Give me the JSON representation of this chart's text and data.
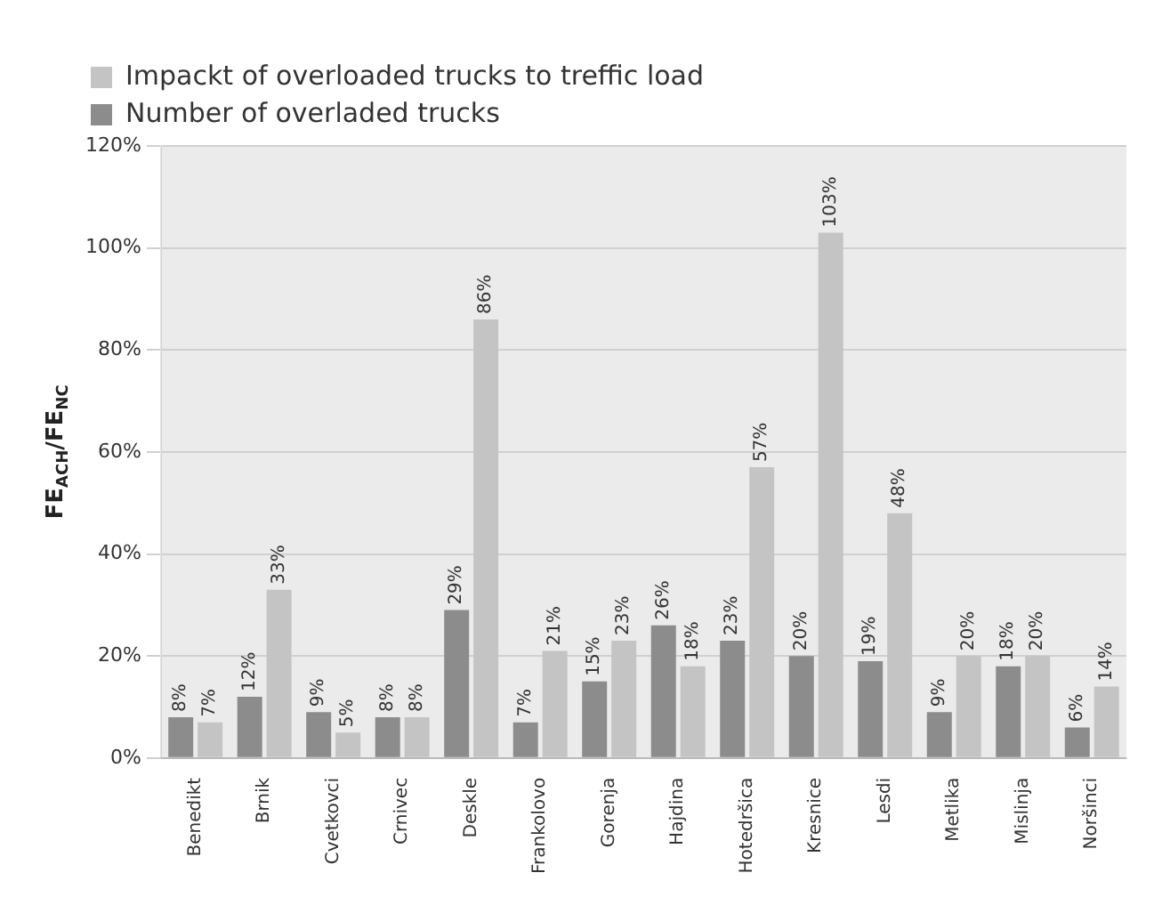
{
  "chart_data": {
    "type": "bar",
    "ylabel": "FE$_{ACH}$/FE$_{NC}$",
    "categories": [
      "Benedikt",
      "Brnik",
      "Cvetkovci",
      "Crnivec",
      "Deskle",
      "Frankolovo",
      "Gorenja",
      "Hajdina",
      "Hotedršica",
      "Kresnice",
      "Lesdi",
      "Metlika",
      "Mislinja",
      "Noršinci"
    ],
    "series": [
      {
        "name": "Number of overladed trucks",
        "color": "#8c8c8c",
        "values": [
          8,
          12,
          9,
          8,
          29,
          7,
          15,
          26,
          23,
          20,
          19,
          9,
          18,
          6
        ],
        "value_labels": [
          "8%",
          "12%",
          "9%",
          "8%",
          "29%",
          "7%",
          "15%",
          "26%",
          "23%",
          "20%",
          "19%",
          "9%",
          "18%",
          "6%"
        ]
      },
      {
        "name": "Impackt of overloaded trucks to treffic load",
        "color": "#c4c4c4",
        "values": [
          7,
          33,
          5,
          8,
          86,
          21,
          23,
          18,
          57,
          103,
          48,
          20,
          20,
          14
        ],
        "value_labels": [
          "7%",
          "33%",
          "5%",
          "8%",
          "86%",
          "21%",
          "23%",
          "18%",
          "57%",
          "103%",
          "48%",
          "20%",
          "20%",
          "14%"
        ]
      }
    ],
    "ylim": [
      0,
      120
    ],
    "yticks": [
      {
        "value": 0,
        "label": "0%"
      },
      {
        "value": 20,
        "label": "20%"
      },
      {
        "value": 40,
        "label": "40%"
      },
      {
        "value": 60,
        "label": "60%"
      },
      {
        "value": 80,
        "label": "80%"
      },
      {
        "value": 100,
        "label": "100%"
      },
      {
        "value": 120,
        "label": "120%"
      }
    ],
    "grid": "y",
    "legend": "top left"
  }
}
